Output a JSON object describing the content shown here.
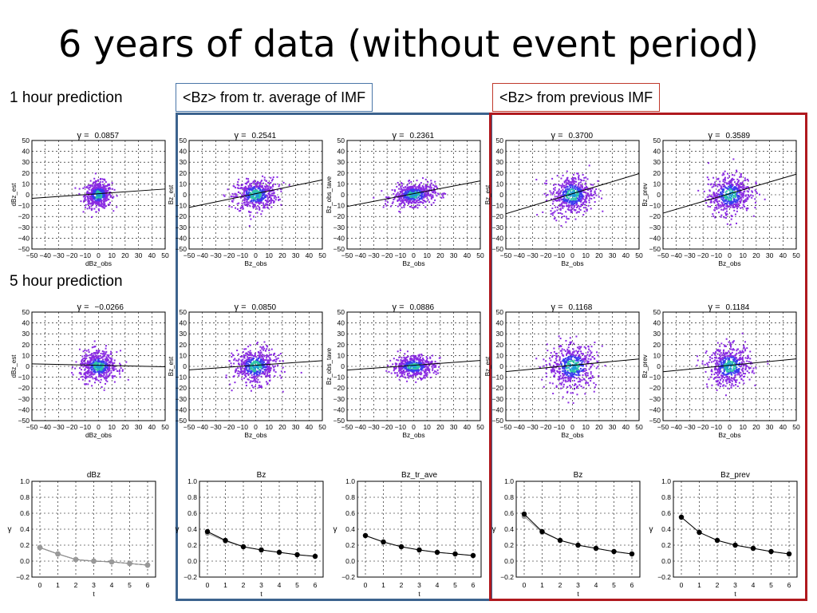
{
  "slide": {
    "title": "6 years of data (without event period)",
    "row_labels": [
      "1 hour prediction",
      "5 hour prediction"
    ],
    "groups": [
      {
        "label": "<Bz> from tr. average of IMF",
        "color": "#3c638e"
      },
      {
        "label": "<Bz> from previous IMF",
        "color": "#b0191e"
      }
    ]
  },
  "chart_data": [
    {
      "type": "scatter",
      "row": "1 hour prediction",
      "title_symbol": "γ =",
      "title_value": "0.0857",
      "xlabel": "dBz_obs",
      "ylabel": "dBz_est",
      "xlim": [
        -50,
        50
      ],
      "ylim": [
        -50,
        50
      ],
      "spread": [
        5,
        6
      ],
      "fit_slope": 0.0857
    },
    {
      "type": "scatter",
      "row": "1 hour prediction",
      "title_symbol": "γ =",
      "title_value": "0.2541",
      "xlabel": "Bz_obs",
      "ylabel": "Bz_est",
      "xlim": [
        -50,
        50
      ],
      "ylim": [
        -50,
        50
      ],
      "spread": [
        8,
        7
      ],
      "fit_slope": 0.2541
    },
    {
      "type": "scatter",
      "row": "1 hour prediction",
      "title_symbol": "γ =",
      "title_value": "0.2361",
      "xlabel": "Bz_obs",
      "ylabel": "Bz_obs_tave",
      "xlim": [
        -50,
        50
      ],
      "ylim": [
        -50,
        50
      ],
      "spread": [
        8,
        5
      ],
      "fit_slope": 0.2361
    },
    {
      "type": "scatter",
      "row": "1 hour prediction",
      "title_symbol": "γ =",
      "title_value": "0.3700",
      "xlabel": "Bz_obs",
      "ylabel": "Bz_est",
      "xlim": [
        -50,
        50
      ],
      "ylim": [
        -50,
        50
      ],
      "spread": [
        8,
        9
      ],
      "fit_slope": 0.37
    },
    {
      "type": "scatter",
      "row": "1 hour prediction",
      "title_symbol": "γ =",
      "title_value": "0.3589",
      "xlabel": "Bz_obs",
      "ylabel": "Bz_prev",
      "xlim": [
        -50,
        50
      ],
      "ylim": [
        -50,
        50
      ],
      "spread": [
        8,
        9
      ],
      "fit_slope": 0.3589
    },
    {
      "type": "scatter",
      "row": "5 hour prediction",
      "title_symbol": "γ =",
      "title_value": "−0.0266",
      "xlabel": "dBz_obs",
      "ylabel": "dBz_est",
      "xlim": [
        -50,
        50
      ],
      "ylim": [
        -50,
        50
      ],
      "spread": [
        7,
        7
      ],
      "fit_slope": -0.0266
    },
    {
      "type": "scatter",
      "row": "5 hour prediction",
      "title_symbol": "γ =",
      "title_value": "0.0850",
      "xlabel": "Bz_obs",
      "ylabel": "Bz_est",
      "xlim": [
        -50,
        50
      ],
      "ylim": [
        -50,
        50
      ],
      "spread": [
        8,
        8
      ],
      "fit_slope": 0.085
    },
    {
      "type": "scatter",
      "row": "5 hour prediction",
      "title_symbol": "γ =",
      "title_value": "0.0886",
      "xlabel": "Bz_obs",
      "ylabel": "Bz_obs_tave",
      "xlim": [
        -50,
        50
      ],
      "ylim": [
        -50,
        50
      ],
      "spread": [
        8,
        5
      ],
      "fit_slope": 0.0886
    },
    {
      "type": "scatter",
      "row": "5 hour prediction",
      "title_symbol": "γ =",
      "title_value": "0.1168",
      "xlabel": "Bz_obs",
      "ylabel": "Bz_est",
      "xlim": [
        -50,
        50
      ],
      "ylim": [
        -50,
        50
      ],
      "spread": [
        9,
        10
      ],
      "fit_slope": 0.1168
    },
    {
      "type": "scatter",
      "row": "5 hour prediction",
      "title_symbol": "γ =",
      "title_value": "0.1184",
      "xlabel": "Bz_obs",
      "ylabel": "Bz_prev",
      "xlim": [
        -50,
        50
      ],
      "ylim": [
        -50,
        50
      ],
      "spread": [
        8,
        9
      ],
      "fit_slope": 0.1184
    },
    {
      "type": "line",
      "title": "dBz",
      "xlabel": "t",
      "ylabel": "γ",
      "xlim": [
        0,
        6
      ],
      "ylim": [
        -0.2,
        1.0
      ],
      "x": [
        0,
        1,
        2,
        3,
        4,
        5,
        6
      ],
      "series": [
        {
          "values": [
            0.17,
            0.09,
            0.02,
            0.0,
            -0.01,
            -0.03,
            -0.05
          ],
          "color": "#000000"
        },
        {
          "values": [
            0.17,
            0.09,
            0.02,
            0.0,
            -0.01,
            -0.03,
            -0.05
          ],
          "color": "#999999"
        }
      ]
    },
    {
      "type": "line",
      "title": "Bz",
      "xlabel": "t",
      "ylabel": "γ",
      "xlim": [
        0,
        6
      ],
      "ylim": [
        -0.2,
        1.0
      ],
      "x": [
        0,
        1,
        2,
        3,
        4,
        5,
        6
      ],
      "series": [
        {
          "values": [
            0.35,
            0.25,
            0.18,
            0.14,
            0.11,
            0.08,
            0.06
          ],
          "color": "#999999"
        },
        {
          "values": [
            0.37,
            0.26,
            0.18,
            0.14,
            0.11,
            0.08,
            0.06
          ],
          "color": "#000000"
        }
      ]
    },
    {
      "type": "line",
      "title": "Bz_tr_ave",
      "xlabel": "t",
      "ylabel": "γ",
      "xlim": [
        0,
        6
      ],
      "ylim": [
        -0.2,
        1.0
      ],
      "x": [
        0,
        1,
        2,
        3,
        4,
        5,
        6
      ],
      "series": [
        {
          "values": [
            0.32,
            0.24,
            0.18,
            0.14,
            0.11,
            0.09,
            0.07
          ],
          "color": "#999999"
        },
        {
          "values": [
            0.32,
            0.24,
            0.18,
            0.14,
            0.11,
            0.09,
            0.07
          ],
          "color": "#000000"
        }
      ]
    },
    {
      "type": "line",
      "title": "Bz",
      "xlabel": "t",
      "ylabel": "γ",
      "xlim": [
        0,
        6
      ],
      "ylim": [
        -0.2,
        1.0
      ],
      "x": [
        0,
        1,
        2,
        3,
        4,
        5,
        6
      ],
      "series": [
        {
          "values": [
            0.56,
            0.36,
            0.26,
            0.2,
            0.16,
            0.12,
            0.09
          ],
          "color": "#999999"
        },
        {
          "values": [
            0.59,
            0.37,
            0.26,
            0.2,
            0.16,
            0.12,
            0.09
          ],
          "color": "#000000"
        }
      ]
    },
    {
      "type": "line",
      "title": "Bz_prev",
      "xlabel": "t",
      "ylabel": "γ",
      "xlim": [
        0,
        6
      ],
      "ylim": [
        -0.2,
        1.0
      ],
      "x": [
        0,
        1,
        2,
        3,
        4,
        5,
        6
      ],
      "series": [
        {
          "values": [
            0.55,
            0.36,
            0.26,
            0.2,
            0.16,
            0.12,
            0.09
          ],
          "color": "#999999"
        },
        {
          "values": [
            0.55,
            0.36,
            0.26,
            0.2,
            0.16,
            0.12,
            0.09
          ],
          "color": "#000000"
        }
      ]
    }
  ]
}
